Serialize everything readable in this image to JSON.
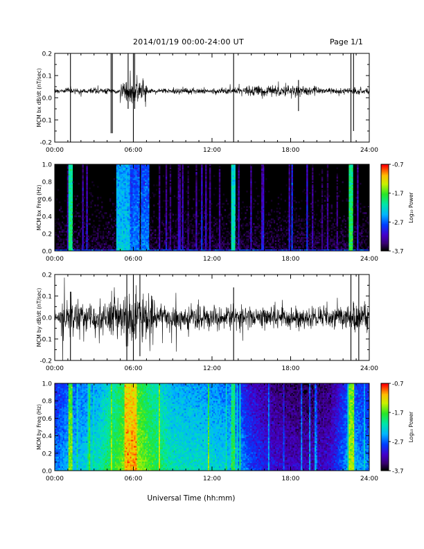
{
  "header": {
    "date_range": "2014/01/19  00:00-24:00 UT",
    "page": "Page 1/1"
  },
  "x_tick_labels": [
    "00:00",
    "06:00",
    "12:00",
    "18:00",
    "24:00"
  ],
  "x_axis_title": "Universal Time (hh:mm)",
  "colorbar": {
    "tick_labels": [
      "-0.7",
      "-1.7",
      "-2.7",
      "-3.7"
    ],
    "label": "Log₁₀ Power"
  },
  "chart_data": [
    {
      "type": "line",
      "ylabel": "MCM bx dB/dt (nT/sec)",
      "xlim": [
        "00:00",
        "24:00"
      ],
      "ylim": [
        -0.2,
        0.2
      ],
      "yticks": [
        "0.2",
        "0.1",
        "0.0",
        "-0.1",
        "-0.2"
      ],
      "baseline": 0.03,
      "noise": 0.012,
      "active_hours": [
        [
          5.0,
          7.0,
          0.05
        ],
        [
          14.5,
          20.0,
          0.02
        ]
      ],
      "spikes": [
        [
          1.2,
          -0.2,
          0.2
        ],
        [
          4.3,
          -0.16,
          0.2
        ],
        [
          4.4,
          -0.16,
          0.2
        ],
        [
          5.6,
          -0.05,
          0.2
        ],
        [
          6.0,
          -0.2,
          0.2
        ],
        [
          6.1,
          -0.05,
          0.2
        ],
        [
          13.65,
          -0.2,
          0.2
        ],
        [
          18.6,
          -0.06,
          0.08
        ],
        [
          22.6,
          -0.2,
          0.2
        ],
        [
          22.8,
          -0.15,
          0.2
        ]
      ]
    },
    {
      "type": "heatmap",
      "ylabel": "MCM bx Freq (Hz)",
      "xlim": [
        "00:00",
        "24:00"
      ],
      "ylim": [
        0.0,
        1.0
      ],
      "yticks": [
        "1.0",
        "0.8",
        "0.6",
        "0.4",
        "0.2",
        "0.0"
      ],
      "zlim": [
        -3.7,
        -0.7
      ],
      "background_log_power": -3.6,
      "bright_bands": [
        [
          1.2,
          0.15,
          -1.9
        ],
        [
          5.2,
          0.5,
          -2.3
        ],
        [
          5.7,
          0.4,
          -2.7
        ],
        [
          6.2,
          0.3,
          -2.6
        ],
        [
          6.9,
          0.3,
          -2.6
        ],
        [
          13.65,
          0.15,
          -2.1
        ],
        [
          18.1,
          0.1,
          -2.8
        ],
        [
          22.6,
          0.18,
          -1.8
        ]
      ]
    },
    {
      "type": "line",
      "ylabel": "MCM by dB/dt (nT/sec)",
      "xlim": [
        "00:00",
        "24:00"
      ],
      "ylim": [
        -0.2,
        0.2
      ],
      "yticks": [
        "0.2",
        "0.1",
        "0.0",
        "-0.1",
        "-0.2"
      ],
      "baseline": 0.0,
      "noise": 0.03,
      "active_hours": [
        [
          0.5,
          4.0,
          0.06
        ],
        [
          4.0,
          7.5,
          0.11
        ],
        [
          7.5,
          13.0,
          0.05
        ],
        [
          13.0,
          21.5,
          0.035
        ],
        [
          21.5,
          24.0,
          0.06
        ]
      ],
      "spikes": [
        [
          1.2,
          -0.2,
          0.12
        ],
        [
          5.5,
          -0.2,
          0.2
        ],
        [
          6.0,
          -0.2,
          0.2
        ],
        [
          6.5,
          -0.18,
          0.2
        ],
        [
          13.65,
          -0.2,
          0.14
        ],
        [
          22.6,
          -0.2,
          0.2
        ],
        [
          23.2,
          -0.2,
          0.2
        ]
      ]
    },
    {
      "type": "heatmap",
      "ylabel": "MCM by Freq (Hz)",
      "xlim": [
        "00:00",
        "24:00"
      ],
      "ylim": [
        0.0,
        1.0
      ],
      "yticks": [
        "1.0",
        "0.8",
        "0.6",
        "0.4",
        "0.2",
        "0.0"
      ],
      "zlim": [
        -3.7,
        -0.7
      ],
      "power_profile": [
        [
          0.0,
          -2.6
        ],
        [
          1.0,
          -2.4
        ],
        [
          3.0,
          -2.2
        ],
        [
          5.0,
          -1.6
        ],
        [
          6.0,
          -1.3
        ],
        [
          7.0,
          -1.6
        ],
        [
          9.0,
          -2.1
        ],
        [
          12.0,
          -2.2
        ],
        [
          13.5,
          -2.3
        ],
        [
          15.0,
          -2.8
        ],
        [
          17.0,
          -3.1
        ],
        [
          19.0,
          -3.2
        ],
        [
          21.0,
          -3.1
        ],
        [
          22.5,
          -2.4
        ],
        [
          24.0,
          -2.6
        ]
      ],
      "bright_bands": [
        [
          1.2,
          0.15,
          -1.5
        ],
        [
          5.8,
          0.5,
          -1.0
        ],
        [
          13.65,
          0.15,
          -1.8
        ],
        [
          22.6,
          0.2,
          -1.4
        ]
      ]
    }
  ]
}
